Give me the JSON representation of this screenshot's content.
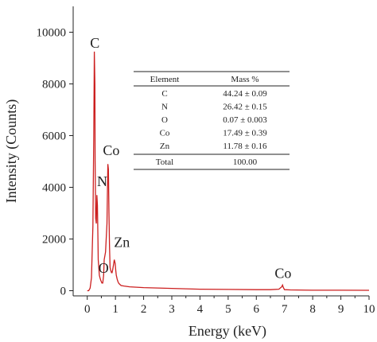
{
  "chart_data": {
    "type": "line",
    "xlabel": "Energy (keV)",
    "ylabel": "Intensity (Counts)",
    "xlim": [
      -0.5,
      10
    ],
    "ylim": [
      -200,
      11000
    ],
    "xticks": [
      0,
      1,
      2,
      3,
      4,
      5,
      6,
      7,
      8,
      9,
      10
    ],
    "yticks": [
      0,
      2000,
      4000,
      6000,
      8000,
      10000
    ],
    "ytick_labels": [
      "0",
      "2000",
      "4000",
      "6000",
      "8000",
      "10000"
    ],
    "line_color": "#cc1f1f",
    "series": [
      {
        "x": [
          0.0,
          0.05,
          0.1,
          0.15,
          0.2,
          0.23,
          0.25,
          0.27,
          0.28,
          0.3,
          0.32,
          0.34,
          0.36,
          0.38,
          0.39,
          0.41,
          0.43,
          0.45,
          0.48,
          0.5,
          0.52,
          0.55,
          0.58,
          0.6,
          0.65,
          0.7,
          0.73,
          0.75,
          0.77,
          0.79,
          0.81,
          0.83,
          0.86,
          0.88,
          0.9,
          0.93,
          0.96,
          0.99,
          1.01,
          1.03,
          1.06,
          1.09,
          1.12,
          1.2,
          1.3,
          1.5,
          2.0,
          3.0,
          4.0,
          5.0,
          6.0,
          6.5,
          6.8,
          6.9,
          6.93,
          6.96,
          7.0,
          7.2,
          8.0,
          9.0,
          10.0
        ],
        "y": [
          0,
          0,
          100,
          500,
          2500,
          6000,
          9250,
          8000,
          5000,
          2800,
          2600,
          3700,
          3300,
          1900,
          1200,
          900,
          600,
          500,
          400,
          350,
          300,
          300,
          600,
          1200,
          1500,
          2600,
          4900,
          4700,
          3000,
          1700,
          900,
          800,
          700,
          700,
          800,
          1000,
          1200,
          1050,
          800,
          600,
          450,
          350,
          280,
          200,
          180,
          150,
          120,
          90,
          60,
          50,
          40,
          40,
          60,
          150,
          220,
          120,
          40,
          30,
          20,
          20,
          15
        ]
      }
    ],
    "annotations": [
      {
        "text": "C",
        "x": 0.27,
        "y": 9400
      },
      {
        "text": "N",
        "x": 0.53,
        "y": 4050
      },
      {
        "text": "O",
        "x": 0.58,
        "y": 700
      },
      {
        "text": "Co",
        "x": 0.85,
        "y": 5250
      },
      {
        "text": "Zn",
        "x": 1.23,
        "y": 1700
      },
      {
        "text": "Co",
        "x": 6.95,
        "y": 500
      }
    ],
    "inset_table": {
      "headers": [
        "Element",
        "Mass %"
      ],
      "rows": [
        [
          "C",
          "44.24 ± 0.09"
        ],
        [
          "N",
          "26.42 ± 0.15"
        ],
        [
          "O",
          "0.07 ± 0.003"
        ],
        [
          "Co",
          "17.49 ± 0.39"
        ],
        [
          "Zn",
          "11.78 ± 0.16"
        ]
      ],
      "total": [
        "Total",
        "100.00"
      ]
    }
  }
}
